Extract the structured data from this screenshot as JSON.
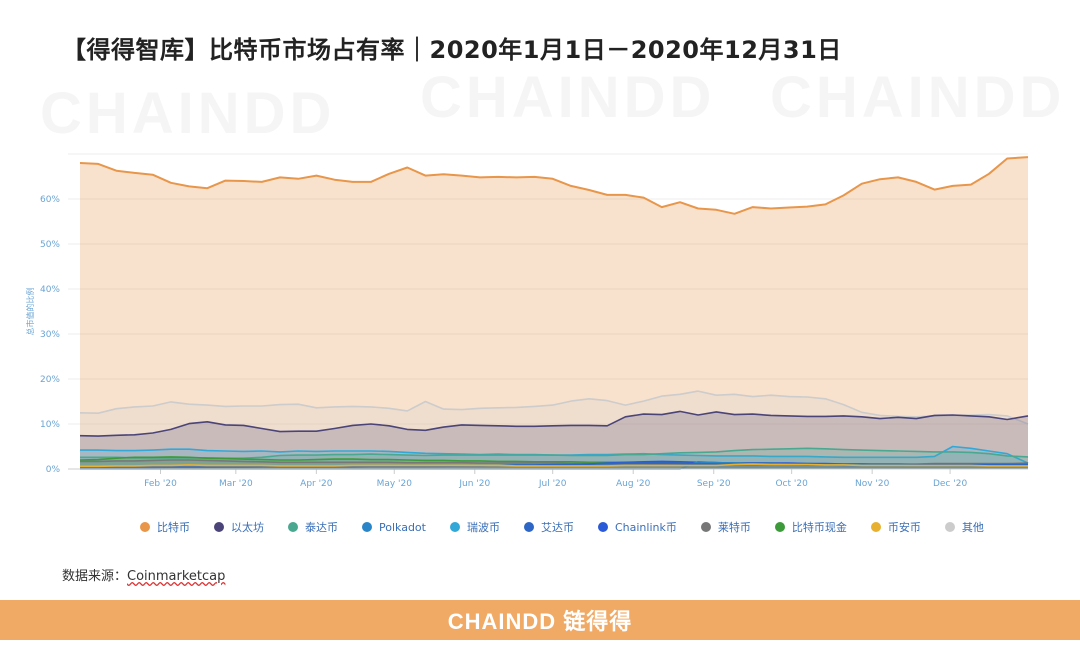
{
  "title": "【得得智库】比特币市场占有率｜2020年1月1日－2020年12月31日",
  "watermark": "CHAINDD",
  "source": {
    "label": "数据来源：",
    "value": "Coinmarketcap"
  },
  "footer": {
    "brand": "CHAINDD 链得得"
  },
  "chart_data": {
    "type": "area",
    "stacked": false,
    "title": "",
    "xlabel": "",
    "ylabel": "总市值的比例",
    "ylim": [
      0,
      70
    ],
    "yticks": [
      "0%",
      "10%",
      "20%",
      "30%",
      "40%",
      "50%",
      "60%"
    ],
    "yticks_values": [
      0,
      10,
      20,
      30,
      40,
      50,
      60
    ],
    "x_range": [
      "2020-01-01",
      "2020-12-31"
    ],
    "x_tick_labels": [
      "Feb '20",
      "Mar '20",
      "Apr '20",
      "May '20",
      "Jun '20",
      "Jul '20",
      "Aug '20",
      "Sep '20",
      "Oct '20",
      "Nov '20",
      "Dec '20"
    ],
    "x_tick_dates": [
      "2020-02-01",
      "2020-03-01",
      "2020-04-01",
      "2020-05-01",
      "2020-06-01",
      "2020-07-01",
      "2020-08-01",
      "2020-09-01",
      "2020-10-01",
      "2020-11-01",
      "2020-12-01"
    ],
    "grid": true,
    "legend_position": "bottom",
    "x": [
      "2020-01-01",
      "2020-01-08",
      "2020-01-15",
      "2020-01-22",
      "2020-01-29",
      "2020-02-05",
      "2020-02-12",
      "2020-02-19",
      "2020-02-26",
      "2020-03-04",
      "2020-03-11",
      "2020-03-18",
      "2020-03-25",
      "2020-04-01",
      "2020-04-08",
      "2020-04-15",
      "2020-04-22",
      "2020-04-29",
      "2020-05-06",
      "2020-05-13",
      "2020-05-20",
      "2020-05-27",
      "2020-06-03",
      "2020-06-10",
      "2020-06-17",
      "2020-06-24",
      "2020-07-01",
      "2020-07-08",
      "2020-07-15",
      "2020-07-22",
      "2020-07-29",
      "2020-08-05",
      "2020-08-12",
      "2020-08-19",
      "2020-08-26",
      "2020-09-02",
      "2020-09-09",
      "2020-09-16",
      "2020-09-23",
      "2020-09-30",
      "2020-10-07",
      "2020-10-14",
      "2020-10-21",
      "2020-10-28",
      "2020-11-04",
      "2020-11-11",
      "2020-11-18",
      "2020-11-25",
      "2020-12-02",
      "2020-12-09",
      "2020-12-16",
      "2020-12-23",
      "2020-12-31"
    ],
    "series": [
      {
        "name": "比特币",
        "color": "#e8964a",
        "values": [
          68,
          67.8,
          66.3,
          65.8,
          65.4,
          63.6,
          62.8,
          62.4,
          64.1,
          64,
          63.8,
          64.8,
          64.5,
          65.2,
          64.3,
          63.8,
          63.8,
          65.6,
          67,
          65.2,
          65.5,
          65.2,
          64.8,
          64.9,
          64.8,
          64.9,
          64.5,
          62.9,
          62,
          60.9,
          60.9,
          60.3,
          58.2,
          59.3,
          57.9,
          57.6,
          56.7,
          58.2,
          57.9,
          58.1,
          58.3,
          58.8,
          60.8,
          63.4,
          64.4,
          64.8,
          63.8,
          62.1,
          62.9,
          63.2,
          65.6,
          69,
          69.3
        ]
      },
      {
        "name": "以太坊",
        "color": "#4a4479",
        "values": [
          7.4,
          7.3,
          7.5,
          7.6,
          8,
          8.8,
          10.1,
          10.5,
          9.8,
          9.7,
          9,
          8.3,
          8.4,
          8.4,
          9,
          9.7,
          10,
          9.6,
          8.8,
          8.6,
          9.3,
          9.8,
          9.7,
          9.6,
          9.5,
          9.5,
          9.6,
          9.7,
          9.7,
          9.6,
          11.6,
          12.2,
          12.1,
          12.8,
          12,
          12.7,
          12.1,
          12.2,
          11.9,
          11.8,
          11.7,
          11.7,
          11.8,
          11.6,
          11.2,
          11.5,
          11.2,
          11.9,
          12,
          11.8,
          11.6,
          11,
          11.8
        ]
      },
      {
        "name": "泰达币",
        "color": "#4aa890",
        "values": [
          2.6,
          2.6,
          2.6,
          2.5,
          2.5,
          2.5,
          2.5,
          2.5,
          2.4,
          2.4,
          2.6,
          3,
          3.1,
          3.1,
          3.2,
          3.2,
          3.3,
          3.2,
          3.1,
          3,
          3.1,
          3.1,
          3.1,
          3.1,
          3.1,
          3.1,
          3.1,
          3,
          3,
          3,
          3.2,
          3.2,
          3.4,
          3.6,
          3.7,
          3.8,
          4.1,
          4.3,
          4.4,
          4.5,
          4.6,
          4.5,
          4.3,
          4.2,
          4.1,
          4,
          3.9,
          3.8,
          3.8,
          3.7,
          3.4,
          2.9,
          2.7
        ]
      },
      {
        "name": "Polkadot",
        "color": "#2a85c8",
        "values": [
          0,
          0,
          0,
          0,
          0,
          0,
          0,
          0,
          0,
          0,
          0,
          0,
          0,
          0,
          0,
          0,
          0,
          0,
          0,
          0,
          0,
          0,
          0,
          0,
          0,
          0,
          0,
          0,
          0,
          0,
          0,
          0,
          0,
          0,
          1.6,
          1.4,
          1.3,
          1.1,
          1.2,
          1.1,
          1,
          1,
          1,
          0.9,
          0.9,
          0.9,
          0.9,
          0.9,
          0.9,
          1,
          1,
          1.1,
          1.2
        ]
      },
      {
        "name": "瑞波币",
        "color": "#32a8d8",
        "values": [
          4.2,
          4.2,
          4.1,
          4.1,
          4.2,
          4.4,
          4.4,
          4.1,
          4,
          3.9,
          4,
          3.8,
          4,
          3.9,
          4,
          4,
          4,
          3.9,
          3.7,
          3.5,
          3.4,
          3.3,
          3.2,
          3.3,
          3.2,
          3.2,
          3.1,
          3.1,
          3.2,
          3.2,
          3.3,
          3.4,
          3.2,
          3.1,
          3,
          2.9,
          2.9,
          2.9,
          2.8,
          2.8,
          2.8,
          2.7,
          2.6,
          2.6,
          2.6,
          2.6,
          2.6,
          2.8,
          5,
          4.6,
          4,
          3.4,
          1.3
        ]
      },
      {
        "name": "艾达币",
        "color": "#2d66c4",
        "values": [
          0.5,
          0.5,
          0.5,
          0.5,
          0.5,
          0.6,
          0.6,
          0.6,
          0.5,
          0.5,
          0.5,
          0.5,
          0.5,
          0.5,
          0.6,
          0.6,
          0.6,
          0.6,
          0.6,
          0.6,
          0.7,
          0.7,
          0.8,
          0.8,
          0.9,
          0.9,
          1,
          1,
          1.1,
          1.2,
          1.3,
          1.3,
          1.3,
          1.2,
          1.1,
          1.1,
          1,
          1,
          1,
          1,
          0.9,
          0.9,
          0.8,
          0.8,
          0.8,
          0.8,
          0.9,
          1,
          1,
          1,
          1,
          1,
          1
        ]
      },
      {
        "name": "Chainlink币",
        "color": "#2a5ad8",
        "values": [
          0.3,
          0.3,
          0.3,
          0.3,
          0.3,
          0.4,
          0.4,
          0.4,
          0.4,
          0.4,
          0.5,
          0.5,
          0.5,
          0.5,
          0.5,
          0.5,
          0.6,
          0.6,
          0.6,
          0.6,
          0.6,
          0.7,
          0.7,
          0.8,
          0.8,
          0.8,
          0.9,
          1,
          1.1,
          1.3,
          1.5,
          1.6,
          1.7,
          1.6,
          1.5,
          1.4,
          1.3,
          1.3,
          1.3,
          1.3,
          1.2,
          1.2,
          1.1,
          1.1,
          1,
          1,
          0.9,
          0.9,
          0.9,
          0.9,
          0.8,
          0.8,
          0.8
        ]
      },
      {
        "name": "莱特币",
        "color": "#777777",
        "values": [
          1.7,
          1.7,
          1.8,
          1.8,
          1.9,
          2,
          2,
          1.9,
          1.8,
          1.7,
          1.6,
          1.5,
          1.5,
          1.5,
          1.5,
          1.5,
          1.5,
          1.5,
          1.4,
          1.4,
          1.4,
          1.4,
          1.3,
          1.3,
          1.3,
          1.3,
          1.3,
          1.2,
          1.2,
          1.2,
          1.2,
          1.2,
          1.1,
          1.1,
          1.1,
          1,
          1,
          1,
          1,
          1,
          1,
          1,
          1,
          1,
          1.1,
          1.1,
          1.1,
          1.2,
          1.2,
          1.2,
          1.2,
          1.2,
          1.3
        ]
      },
      {
        "name": "比特币现金",
        "color": "#3d9a3a",
        "values": [
          2,
          2.1,
          2.4,
          2.6,
          2.6,
          2.7,
          2.6,
          2.4,
          2.3,
          2.2,
          2.1,
          2,
          2,
          2.1,
          2.2,
          2.2,
          2.1,
          2.1,
          2,
          1.9,
          1.9,
          1.8,
          1.8,
          1.7,
          1.7,
          1.6,
          1.6,
          1.6,
          1.5,
          1.5,
          1.5,
          1.5,
          1.5,
          1.4,
          1.4,
          1.4,
          1.3,
          1.3,
          1.3,
          1.2,
          1.2,
          1.1,
          1.1,
          1.1,
          1.1,
          1.1,
          1,
          1,
          1,
          1,
          1,
          1,
          1
        ]
      },
      {
        "name": "币安币",
        "color": "#e8b030",
        "values": [
          0.6,
          0.6,
          0.7,
          0.7,
          0.8,
          0.8,
          0.9,
          0.8,
          0.8,
          0.8,
          0.8,
          0.7,
          0.7,
          0.7,
          0.7,
          0.8,
          0.8,
          0.8,
          0.8,
          0.8,
          0.8,
          0.8,
          0.8,
          0.8,
          0.7,
          0.7,
          0.7,
          0.7,
          0.7,
          0.7,
          0.8,
          0.8,
          0.8,
          0.8,
          0.8,
          0.8,
          1,
          1.1,
          1,
          1,
          1,
          0.9,
          0.9,
          0.8,
          0.8,
          0.8,
          0.8,
          0.8,
          0.8,
          0.8,
          0.7,
          0.7,
          0.7
        ]
      },
      {
        "name": "其他",
        "color": "#cccccc",
        "values": [
          12.5,
          12.4,
          13.4,
          13.8,
          14,
          14.9,
          14.4,
          14.2,
          13.9,
          14,
          14,
          14.3,
          14.4,
          13.6,
          13.8,
          13.9,
          13.8,
          13.5,
          12.9,
          15,
          13.3,
          13.2,
          13.5,
          13.6,
          13.7,
          13.9,
          14.2,
          15.1,
          15.6,
          15.2,
          14.2,
          15.1,
          16.2,
          16.6,
          17.3,
          16.4,
          16.6,
          16.1,
          16.4,
          16.1,
          16,
          15.6,
          14.3,
          12.6,
          11.9,
          11.7,
          11.6,
          11.8,
          11.9,
          12,
          12.1,
          11.8,
          10
        ]
      }
    ]
  }
}
